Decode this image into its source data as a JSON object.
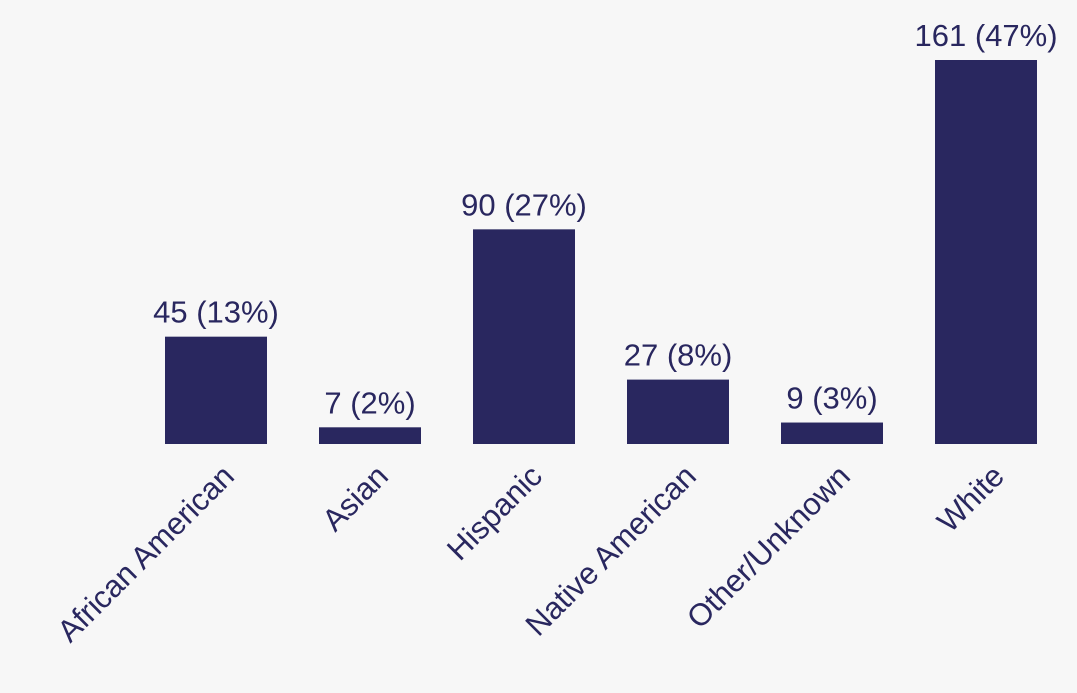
{
  "chart_data": {
    "type": "bar",
    "categories": [
      "African American",
      "Asian",
      "Hispanic",
      "Native American",
      "Other/Unknown",
      "White"
    ],
    "values": [
      45,
      7,
      90,
      27,
      9,
      161
    ],
    "value_labels": [
      "45 (13%)",
      "7 (2%)",
      "90 (27%)",
      "27 (8%)",
      "9 (3%)",
      "161 (47%)"
    ],
    "color": "#29275f"
  }
}
